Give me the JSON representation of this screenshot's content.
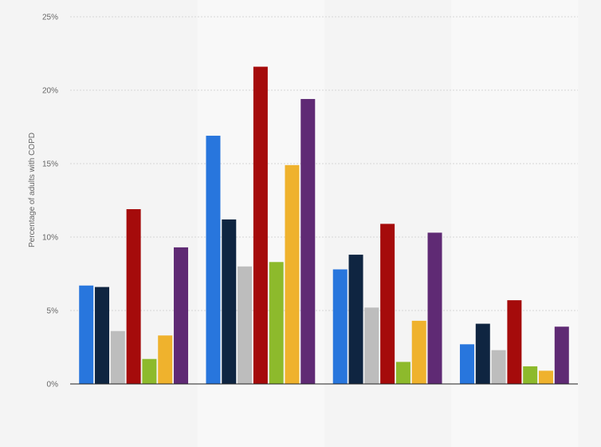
{
  "chart_data": {
    "type": "bar",
    "categories": [
      "",
      "",
      "",
      ""
    ],
    "series": [
      {
        "color": "#2876dd",
        "values": [
          6.7,
          16.9,
          7.8,
          2.7
        ]
      },
      {
        "color": "#0f2541",
        "values": [
          6.6,
          11.2,
          8.8,
          4.1
        ]
      },
      {
        "color": "#bdbdbd",
        "values": [
          3.6,
          8.0,
          5.2,
          2.3
        ]
      },
      {
        "color": "#a50b0b",
        "values": [
          11.9,
          21.6,
          10.9,
          5.7
        ]
      },
      {
        "color": "#8dba2c",
        "values": [
          1.7,
          8.3,
          1.5,
          1.2
        ]
      },
      {
        "color": "#efb22d",
        "values": [
          3.3,
          14.9,
          4.3,
          0.9
        ]
      },
      {
        "color": "#5f2a74",
        "values": [
          9.3,
          19.4,
          10.3,
          3.9
        ]
      }
    ],
    "ylabel": "Percentage of adults with COPD",
    "ylim": [
      0,
      25
    ],
    "yticks": [
      0,
      5,
      10,
      15,
      20,
      25
    ],
    "ytick_suffix": "%",
    "grid": true,
    "alternating_band_color": "#f8f8f8"
  }
}
